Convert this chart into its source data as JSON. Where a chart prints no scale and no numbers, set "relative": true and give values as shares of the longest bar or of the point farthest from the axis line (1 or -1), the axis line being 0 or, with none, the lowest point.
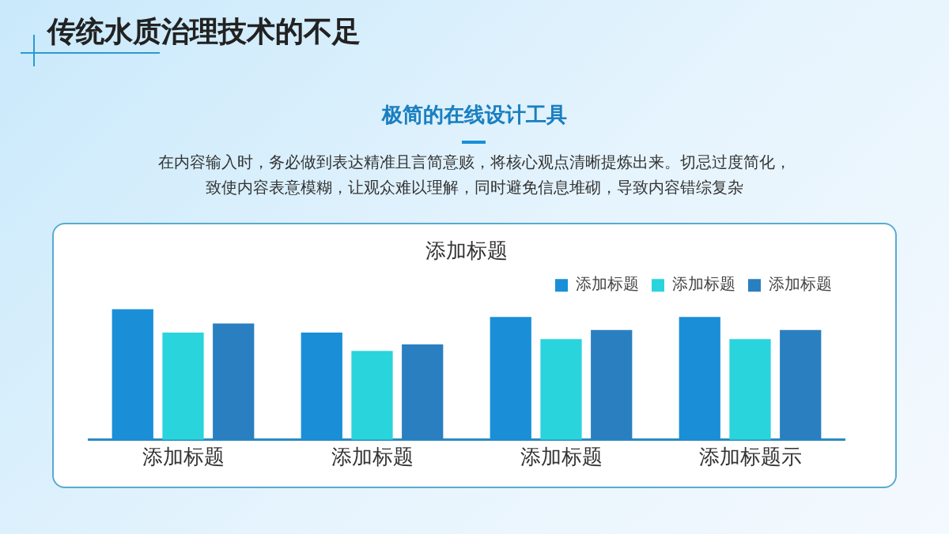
{
  "chart_data": {
    "type": "bar",
    "title": "添加标题",
    "relative": true,
    "categories": [
      "添加标题",
      "添加标题",
      "添加标题",
      "添加标题示"
    ],
    "series": [
      {
        "name": "添加标题",
        "color": "#1a8fd8",
        "values": [
          1,
          0.82,
          0.94,
          0.94
        ]
      },
      {
        "name": "添加标题",
        "color": "#2ad4dc",
        "values": [
          0.82,
          0.68,
          0.77,
          0.77
        ]
      },
      {
        "name": "添加标题",
        "color": "#2a7fc0",
        "values": [
          0.89,
          0.73,
          0.84,
          0.84
        ]
      }
    ],
    "legend": "top right",
    "grid": false,
    "annotations": [
      "传统水质治理技术的不足",
      "极简的在线设计工具",
      "在内容输入时，务必做到表达精准且言简意赅，将核心观点清晰提炼出来。切忌过度简化，",
      "致使内容表意模糊，让观众难以理解，同时避免信息堆砌，导致内容错综复杂"
    ]
  }
}
